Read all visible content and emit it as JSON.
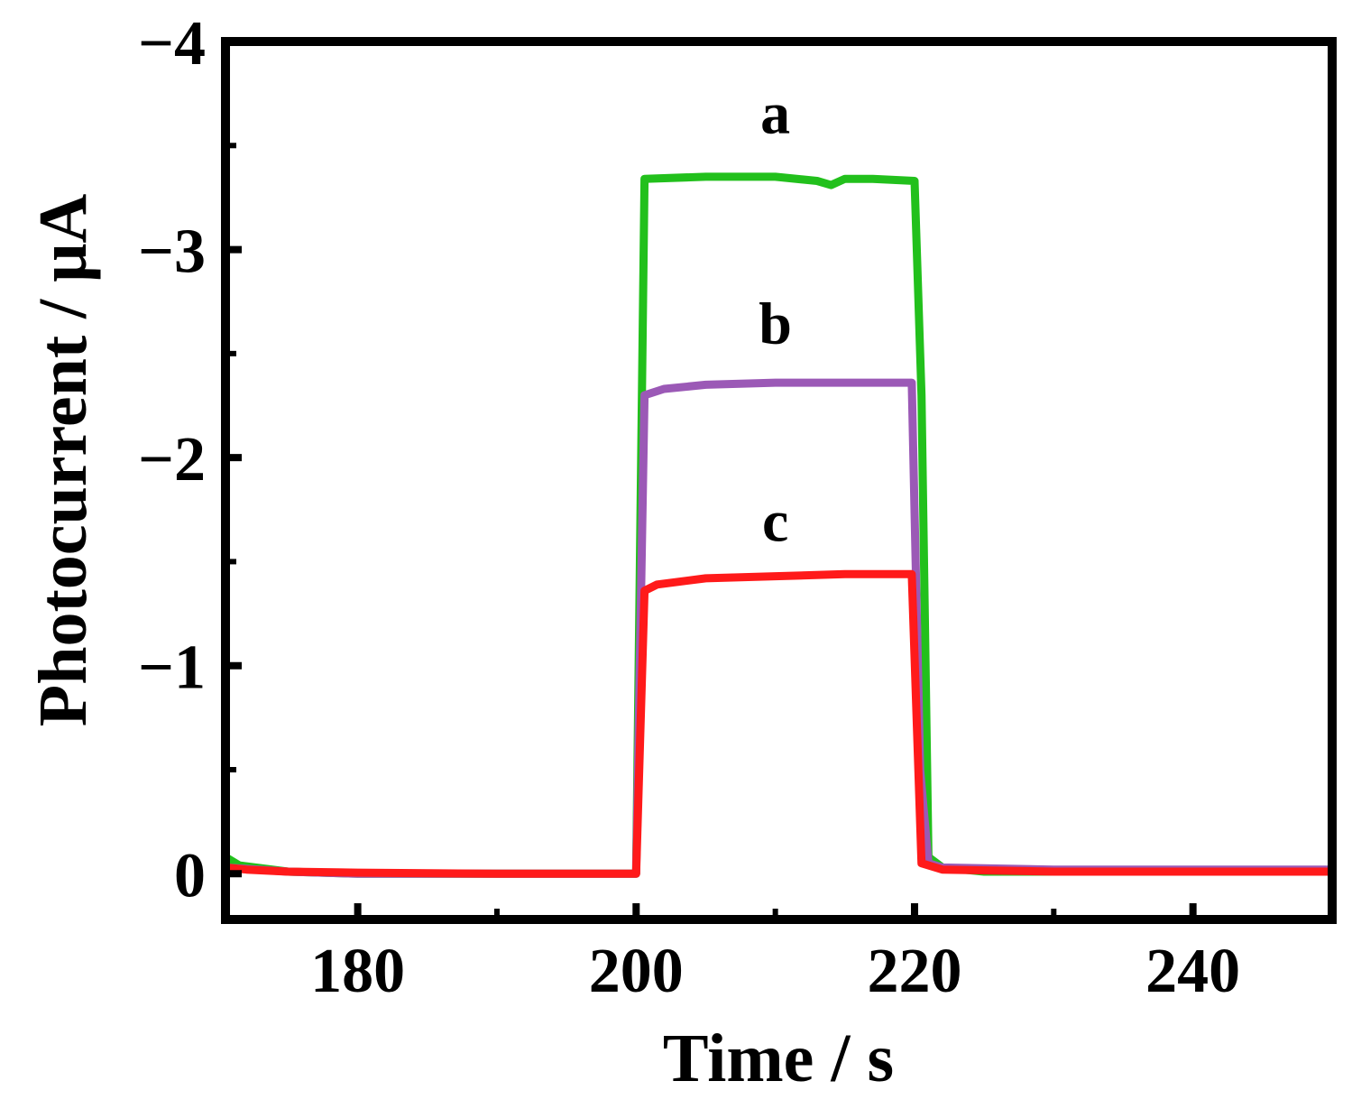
{
  "chart_data": {
    "type": "line",
    "title": "",
    "xlabel": "Time / s",
    "ylabel": "Photocurrent / μA",
    "xlim": [
      170.5,
      250
    ],
    "ylim": [
      0.22,
      -4
    ],
    "y_reversed": true,
    "grid": false,
    "x_ticks": [
      {
        "value": 180,
        "label": "180"
      },
      {
        "value": 200,
        "label": "200"
      },
      {
        "value": 220,
        "label": "220"
      },
      {
        "value": 240,
        "label": "240"
      }
    ],
    "y_ticks": [
      {
        "value": 0,
        "label": "0"
      },
      {
        "value": -1,
        "label": "−1"
      },
      {
        "value": -2,
        "label": "−2"
      },
      {
        "value": -3,
        "label": "−3"
      },
      {
        "value": -4,
        "label": "−4"
      }
    ],
    "series": [
      {
        "name": "a",
        "color": "#22c01c",
        "label_at": [
          210,
          -3.56
        ],
        "points": [
          [
            170.5,
            -0.08
          ],
          [
            171.5,
            -0.04
          ],
          [
            175,
            -0.01
          ],
          [
            180,
            0
          ],
          [
            190,
            0
          ],
          [
            200,
            0
          ],
          [
            200.6,
            -3.34
          ],
          [
            205,
            -3.35
          ],
          [
            210,
            -3.35
          ],
          [
            213,
            -3.33
          ],
          [
            214,
            -3.31
          ],
          [
            215,
            -3.34
          ],
          [
            217,
            -3.34
          ],
          [
            220,
            -3.33
          ],
          [
            220.5,
            -2.3
          ],
          [
            221,
            -0.08
          ],
          [
            222,
            -0.03
          ],
          [
            225,
            -0.01
          ],
          [
            230,
            -0.01
          ],
          [
            240,
            -0.01
          ],
          [
            250,
            -0.01
          ]
        ]
      },
      {
        "name": "b",
        "color": "#9b59b6",
        "label_at": [
          210,
          -2.55
        ],
        "points": [
          [
            170.5,
            -0.03
          ],
          [
            175,
            -0.01
          ],
          [
            180,
            0
          ],
          [
            190,
            0
          ],
          [
            200,
            0
          ],
          [
            200.6,
            -2.3
          ],
          [
            202,
            -2.33
          ],
          [
            205,
            -2.35
          ],
          [
            210,
            -2.36
          ],
          [
            215,
            -2.36
          ],
          [
            219.8,
            -2.36
          ],
          [
            220.4,
            -0.5
          ],
          [
            221,
            -0.05
          ],
          [
            222,
            -0.03
          ],
          [
            230,
            -0.02
          ],
          [
            240,
            -0.02
          ],
          [
            250,
            -0.02
          ]
        ]
      },
      {
        "name": "c",
        "color": "#ff1a1a",
        "label_at": [
          210,
          -1.6
        ],
        "points": [
          [
            170.5,
            -0.03
          ],
          [
            172,
            -0.02
          ],
          [
            175,
            -0.01
          ],
          [
            180,
            -0.005
          ],
          [
            190,
            0
          ],
          [
            200,
            0
          ],
          [
            200.6,
            -1.36
          ],
          [
            201.5,
            -1.39
          ],
          [
            205,
            -1.42
          ],
          [
            210,
            -1.43
          ],
          [
            215,
            -1.44
          ],
          [
            219.8,
            -1.44
          ],
          [
            220.5,
            -0.05
          ],
          [
            222,
            -0.02
          ],
          [
            230,
            -0.01
          ],
          [
            240,
            -0.01
          ],
          [
            250,
            -0.01
          ]
        ]
      }
    ]
  }
}
